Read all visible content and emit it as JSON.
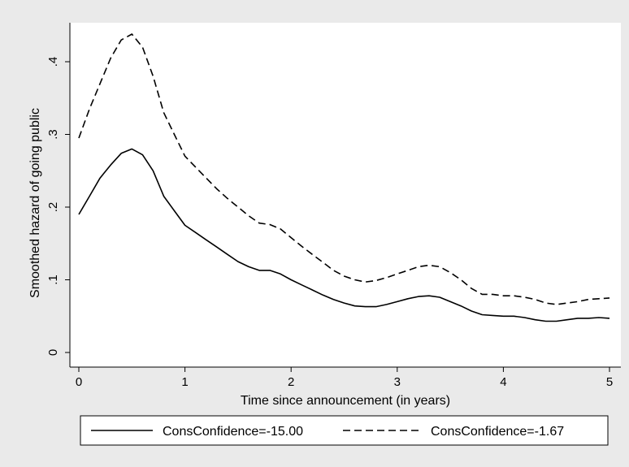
{
  "chart_data": {
    "type": "line",
    "title": "",
    "xlabel": "Time since announcement (in years)",
    "ylabel": "Smoothed hazard of going public",
    "xlim": [
      0,
      5
    ],
    "ylim": [
      0,
      0.45
    ],
    "x_ticks": [
      0,
      1,
      2,
      3,
      4,
      5
    ],
    "x_tick_labels": [
      "0",
      "1",
      "2",
      "3",
      "4",
      "5"
    ],
    "y_ticks": [
      0,
      0.1,
      0.2,
      0.3,
      0.4
    ],
    "y_tick_labels": [
      "0",
      ".1",
      ".2",
      ".3",
      ".4"
    ],
    "grid": false,
    "legend_position": "bottom",
    "series": [
      {
        "name": "ConsConfidence=-15.00",
        "style": "solid",
        "color": "#000000",
        "x": [
          0,
          0.1,
          0.2,
          0.3,
          0.4,
          0.5,
          0.6,
          0.7,
          0.8,
          0.9,
          1.0,
          1.1,
          1.2,
          1.3,
          1.4,
          1.5,
          1.6,
          1.7,
          1.8,
          1.9,
          2.0,
          2.1,
          2.2,
          2.3,
          2.4,
          2.5,
          2.6,
          2.7,
          2.8,
          2.9,
          3.0,
          3.1,
          3.2,
          3.3,
          3.4,
          3.5,
          3.6,
          3.7,
          3.8,
          3.9,
          4.0,
          4.1,
          4.2,
          4.3,
          4.4,
          4.5,
          4.6,
          4.7,
          4.8,
          4.9,
          5.0
        ],
        "y": [
          0.19,
          0.215,
          0.24,
          0.258,
          0.274,
          0.28,
          0.272,
          0.25,
          0.215,
          0.195,
          0.175,
          0.165,
          0.155,
          0.145,
          0.135,
          0.125,
          0.118,
          0.113,
          0.113,
          0.108,
          0.1,
          0.093,
          0.086,
          0.079,
          0.073,
          0.068,
          0.064,
          0.063,
          0.063,
          0.066,
          0.07,
          0.074,
          0.077,
          0.078,
          0.076,
          0.07,
          0.064,
          0.057,
          0.052,
          0.051,
          0.05,
          0.05,
          0.048,
          0.045,
          0.043,
          0.043,
          0.045,
          0.047,
          0.047,
          0.048,
          0.047
        ]
      },
      {
        "name": "ConsConfidence=-1.67",
        "style": "dashed",
        "color": "#000000",
        "x": [
          0,
          0.1,
          0.2,
          0.3,
          0.4,
          0.5,
          0.6,
          0.7,
          0.8,
          0.9,
          1.0,
          1.1,
          1.2,
          1.3,
          1.4,
          1.5,
          1.6,
          1.7,
          1.8,
          1.9,
          2.0,
          2.1,
          2.2,
          2.3,
          2.4,
          2.5,
          2.6,
          2.7,
          2.8,
          2.9,
          3.0,
          3.1,
          3.2,
          3.3,
          3.4,
          3.5,
          3.6,
          3.7,
          3.8,
          3.9,
          4.0,
          4.1,
          4.2,
          4.3,
          4.4,
          4.5,
          4.6,
          4.7,
          4.8,
          4.9,
          5.0
        ],
        "y": [
          0.295,
          0.335,
          0.37,
          0.405,
          0.43,
          0.438,
          0.42,
          0.38,
          0.33,
          0.3,
          0.27,
          0.255,
          0.24,
          0.225,
          0.212,
          0.2,
          0.188,
          0.178,
          0.176,
          0.17,
          0.158,
          0.146,
          0.135,
          0.124,
          0.113,
          0.105,
          0.1,
          0.097,
          0.099,
          0.103,
          0.108,
          0.113,
          0.118,
          0.12,
          0.118,
          0.11,
          0.1,
          0.088,
          0.08,
          0.08,
          0.078,
          0.078,
          0.076,
          0.073,
          0.068,
          0.066,
          0.068,
          0.07,
          0.073,
          0.074,
          0.075
        ]
      }
    ]
  }
}
